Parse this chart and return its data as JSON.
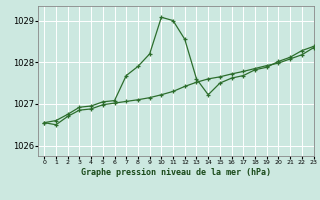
{
  "xlabel": "Graphe pression niveau de la mer (hPa)",
  "bg_color": "#cce8e0",
  "grid_color": "#ffffff",
  "line_color": "#2d6e2d",
  "xlim": [
    -0.5,
    23
  ],
  "ylim": [
    1025.75,
    1029.35
  ],
  "yticks": [
    1026,
    1027,
    1028,
    1029
  ],
  "xticks": [
    0,
    1,
    2,
    3,
    4,
    5,
    6,
    7,
    8,
    9,
    10,
    11,
    12,
    13,
    14,
    15,
    16,
    17,
    18,
    19,
    20,
    21,
    22,
    23
  ],
  "series1_x": [
    0,
    1,
    2,
    3,
    4,
    5,
    6,
    7,
    8,
    9,
    10,
    11,
    12,
    13,
    14,
    15,
    16,
    17,
    18,
    19,
    20,
    21,
    22,
    23
  ],
  "series1_y": [
    1026.55,
    1026.6,
    1026.75,
    1026.92,
    1026.95,
    1027.05,
    1027.08,
    1027.68,
    1027.9,
    1028.2,
    1029.08,
    1029.0,
    1028.55,
    1027.6,
    1027.22,
    1027.5,
    1027.62,
    1027.68,
    1027.82,
    1027.88,
    1028.02,
    1028.12,
    1028.28,
    1028.38
  ],
  "series2_x": [
    0,
    1,
    2,
    3,
    4,
    5,
    6,
    7,
    8,
    9,
    10,
    11,
    12,
    13,
    14,
    15,
    16,
    17,
    18,
    19,
    20,
    21,
    22,
    23
  ],
  "series2_y": [
    1026.55,
    1026.5,
    1026.7,
    1026.85,
    1026.88,
    1026.98,
    1027.02,
    1027.06,
    1027.1,
    1027.15,
    1027.22,
    1027.3,
    1027.42,
    1027.52,
    1027.6,
    1027.65,
    1027.72,
    1027.78,
    1027.85,
    1027.92,
    1027.98,
    1028.08,
    1028.18,
    1028.35
  ]
}
